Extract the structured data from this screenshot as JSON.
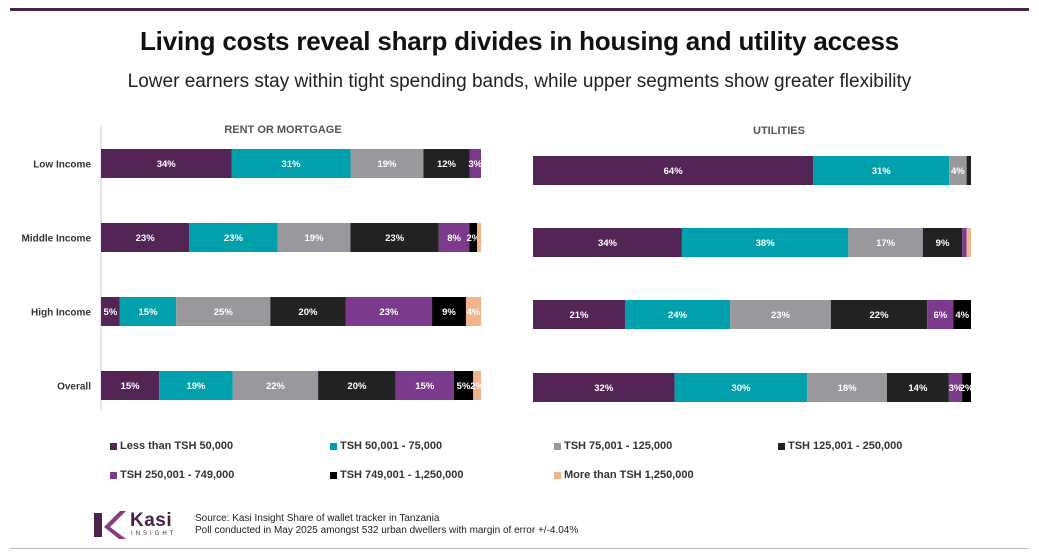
{
  "title": "Living costs reveal sharp divides in housing and utility access",
  "subtitle": "Lower earners stay within tight spending bands, while upper segments show greater flexibility",
  "chart_data": [
    {
      "type": "bar",
      "orientation": "horizontal-stacked-100",
      "title": "RENT OR MORTGAGE",
      "categories": [
        "Low Income",
        "Middle Income",
        "High Income",
        "Overall"
      ],
      "series": [
        {
          "name": "Less than TSH 50,000",
          "values": [
            34,
            23,
            5,
            15
          ]
        },
        {
          "name": "TSH 50,001 - 75,000",
          "values": [
            31,
            23,
            15,
            19
          ]
        },
        {
          "name": "TSH 75,001 - 125,000",
          "values": [
            19,
            19,
            25,
            22
          ]
        },
        {
          "name": "TSH 125,001 - 250,000",
          "values": [
            12,
            23,
            20,
            20
          ]
        },
        {
          "name": "TSH 250,001 - 749,000",
          "values": [
            3,
            8,
            23,
            15
          ]
        },
        {
          "name": "TSH 749,001 - 1,250,000",
          "values": [
            0,
            2,
            9,
            5
          ]
        },
        {
          "name": "More than TSH 1,250,000",
          "values": [
            0,
            1,
            4,
            2
          ]
        }
      ]
    },
    {
      "type": "bar",
      "orientation": "horizontal-stacked-100",
      "title": "UTILITIES",
      "categories": [
        "Low Income",
        "Middle Income",
        "High Income",
        "Overall"
      ],
      "series": [
        {
          "name": "Less than TSH 50,000",
          "values": [
            64,
            34,
            21,
            32
          ]
        },
        {
          "name": "TSH 50,001 - 75,000",
          "values": [
            31,
            38,
            24,
            30
          ]
        },
        {
          "name": "TSH 75,001 - 125,000",
          "values": [
            4,
            17,
            23,
            18
          ]
        },
        {
          "name": "TSH 125,001 - 250,000",
          "values": [
            1,
            9,
            22,
            14
          ]
        },
        {
          "name": "TSH 250,001 - 749,000",
          "values": [
            0,
            1,
            6,
            3
          ]
        },
        {
          "name": "TSH 749,001 - 1,250,000",
          "values": [
            0,
            0,
            4,
            2
          ]
        },
        {
          "name": "More than TSH 1,250,000",
          "values": [
            0,
            1,
            0,
            0
          ]
        }
      ]
    }
  ],
  "colors": [
    "#522554",
    "#00a0ad",
    "#9a989d",
    "#222222",
    "#7b3a8b",
    "#000000",
    "#f1b48e"
  ],
  "label_threshold": 1,
  "legend": [
    "Less than TSH 50,000",
    "TSH 50,001 - 75,000",
    "TSH 75,001 - 125,000",
    "TSH 125,001 - 250,000",
    "TSH 250,001 - 749,000",
    "TSH 749,001 - 1,250,000",
    "More than TSH 1,250,000"
  ],
  "logo": {
    "name": "Kasi",
    "tagline": "INSIGHT"
  },
  "source": {
    "line1": "Source: Kasi Insight Share of wallet tracker in Tanzania",
    "line2": "Poll conducted in May 2025 amongst  532  urban dwellers with margin of error +/-4.04%"
  }
}
